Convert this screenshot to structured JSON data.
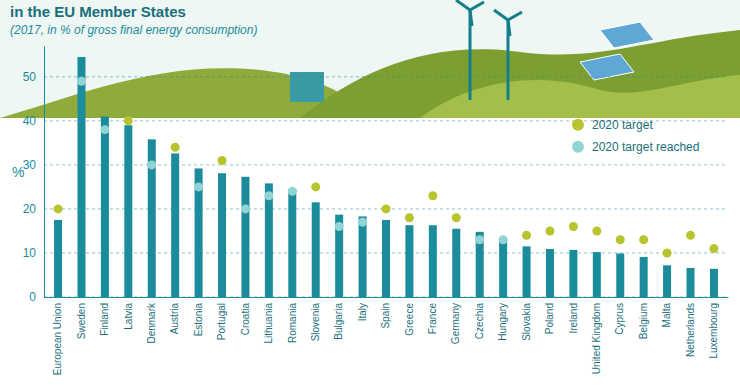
{
  "chart_data": {
    "type": "bar",
    "title": "in the EU Member States",
    "subtitle": "(2017, in % of gross final energy consumption)",
    "y_label": "%",
    "categories": [
      "European Union",
      "Sweden",
      "Finland",
      "Latvia",
      "Denmark",
      "Austria",
      "Estonia",
      "Portugal",
      "Croatia",
      "Lithuania",
      "Romania",
      "Slovenia",
      "Bulgaria",
      "Italy",
      "Spain",
      "Greece",
      "France",
      "Germany",
      "Czechia",
      "Hungary",
      "Slovakia",
      "Poland",
      "Ireland",
      "United Kingdom",
      "Cyprus",
      "Belgium",
      "Malta",
      "Netherlands",
      "Luxembourg"
    ],
    "series": [
      {
        "type": "bar",
        "color": "#1b8c9c",
        "values": [
          17.5,
          54.5,
          41.0,
          39.0,
          35.8,
          32.6,
          29.2,
          28.1,
          27.3,
          25.8,
          24.5,
          21.5,
          18.7,
          18.3,
          17.5,
          16.3,
          16.3,
          15.5,
          14.8,
          13.3,
          11.5,
          10.9,
          10.7,
          10.2,
          9.9,
          9.1,
          7.2,
          6.6,
          6.4
        ]
      },
      {
        "name": "2020 target",
        "type": "scatter",
        "marker": "circle",
        "color": "#b7c42e",
        "values": [
          20,
          null,
          null,
          40,
          null,
          34,
          null,
          31,
          null,
          null,
          null,
          25,
          null,
          null,
          20,
          18,
          23,
          18,
          null,
          null,
          14,
          15,
          16,
          15,
          13,
          13,
          10,
          14,
          11
        ]
      },
      {
        "name": "2020 target reached",
        "type": "scatter",
        "marker": "circle",
        "color": "#92d4d4",
        "values": [
          null,
          49,
          38,
          null,
          30,
          null,
          25,
          null,
          20,
          23,
          24,
          null,
          16,
          17,
          null,
          null,
          null,
          null,
          13,
          13,
          null,
          null,
          null,
          null,
          null,
          null,
          null,
          null,
          null
        ]
      }
    ],
    "ylim": [
      0,
      57
    ],
    "yticks": [
      0,
      10,
      20,
      30,
      40,
      50
    ],
    "grid": true,
    "legend": "top-right"
  }
}
